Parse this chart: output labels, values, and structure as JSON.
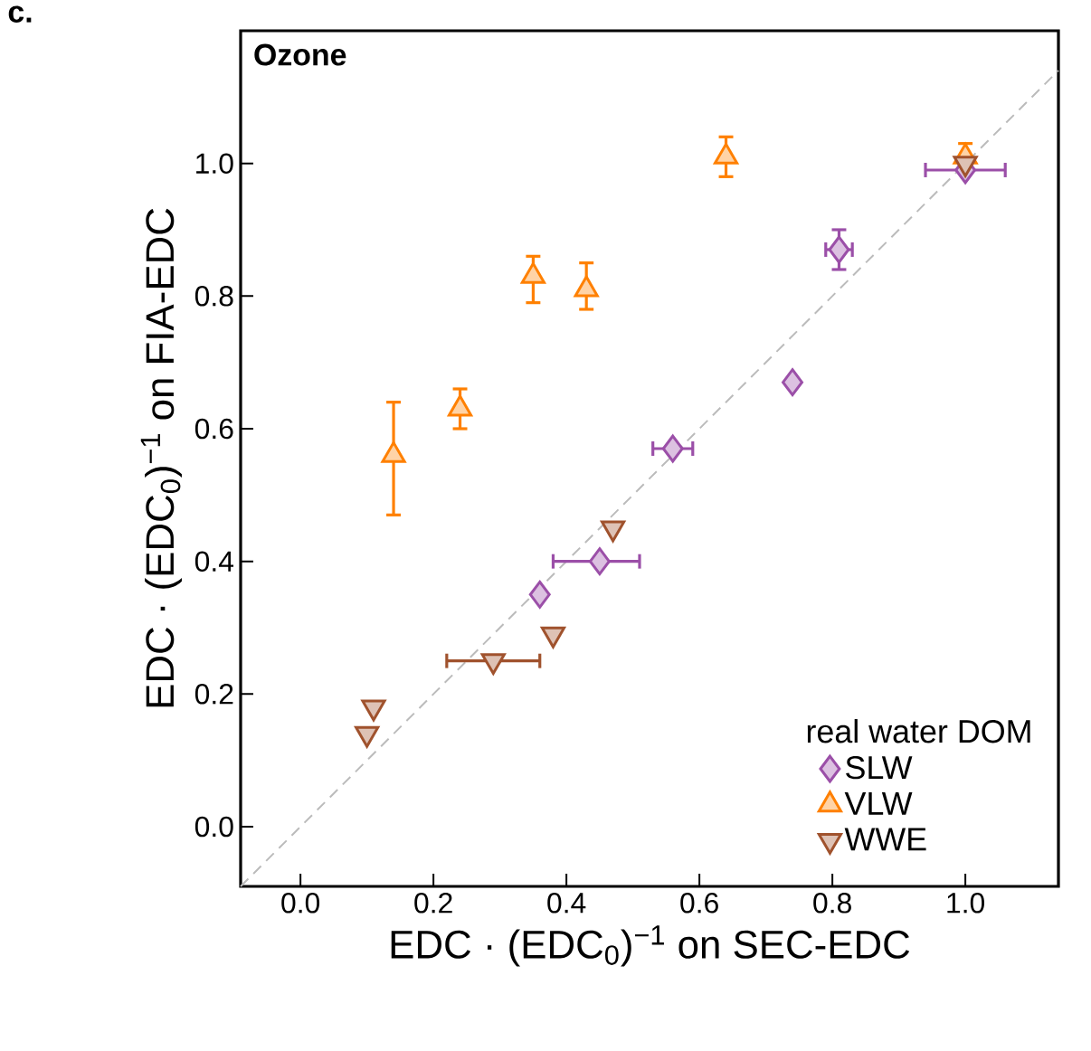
{
  "chart_data": {
    "type": "scatter",
    "title": "Ozone",
    "xlabel": "EDC · (EDC$_{0}$)$^{−1}$ on SEC-EDC",
    "ylabel": "EDC · (EDC$_{0}$)$^{−1}$ on FIA-EDC",
    "annotations": [
      "c."
    ],
    "legend_title": "real water DOM",
    "legend": "bottom right",
    "grid": false,
    "xlim": [
      -0.09,
      1.14
    ],
    "ylim": [
      -0.09,
      1.2
    ],
    "xticks": [
      {
        "value": 0,
        "label": "0.0"
      },
      {
        "value": 0.2,
        "label": "0.2"
      },
      {
        "value": 0.4,
        "label": "0.4"
      },
      {
        "value": 0.6,
        "label": "0.6"
      },
      {
        "value": 0.8,
        "label": "0.8"
      },
      {
        "value": 1,
        "label": "1.0"
      }
    ],
    "yticks": [
      {
        "value": 0,
        "label": "0.0"
      },
      {
        "value": 0.2,
        "label": "0.2"
      },
      {
        "value": 0.4,
        "label": "0.4"
      },
      {
        "value": 0.6,
        "label": "0.6"
      },
      {
        "value": 0.8,
        "label": "0.8"
      },
      {
        "value": 1,
        "label": "1.0"
      }
    ],
    "series": [
      {
        "type": "line",
        "color": "#bbbbbb",
        "line_style": "dashed",
        "marker": "none",
        "x": [
          -0.09,
          1.14
        ],
        "values": [
          -0.09,
          1.14
        ]
      },
      {
        "name": "SLW",
        "color": "#9b4fa8",
        "marker": "diamond",
        "x": [
          0.36,
          0.45,
          0.56,
          0.74,
          0.81,
          1.0
        ],
        "values": [
          0.35,
          0.4,
          0.57,
          0.67,
          0.87,
          0.99
        ],
        "xerrors": [
          null,
          [
            0.38,
            0.51
          ],
          [
            0.53,
            0.59
          ],
          null,
          [
            0.79,
            0.83
          ],
          [
            0.94,
            1.06
          ]
        ],
        "errors": [
          null,
          null,
          null,
          null,
          [
            0.84,
            0.9
          ],
          null
        ]
      },
      {
        "name": "VLW",
        "color": "#ff8000",
        "marker": "triangle",
        "x": [
          0.14,
          0.24,
          0.35,
          0.43,
          0.64,
          1.0
        ],
        "values": [
          0.56,
          0.63,
          0.83,
          0.81,
          1.01,
          1.01
        ],
        "errors": [
          [
            0.47,
            0.64
          ],
          [
            0.6,
            0.66
          ],
          [
            0.79,
            0.86
          ],
          [
            0.78,
            0.85
          ],
          [
            0.98,
            1.04
          ],
          [
            0.99,
            1.03
          ]
        ]
      },
      {
        "name": "WWE",
        "color": "#a0522d",
        "marker": "triangle-down",
        "x": [
          0.11,
          0.1,
          0.29,
          0.38,
          0.47,
          1.0
        ],
        "values": [
          0.18,
          0.14,
          0.25,
          0.29,
          0.45,
          1.0
        ],
        "xerrors": [
          null,
          null,
          [
            0.22,
            0.36
          ],
          null,
          null,
          null
        ]
      }
    ]
  }
}
